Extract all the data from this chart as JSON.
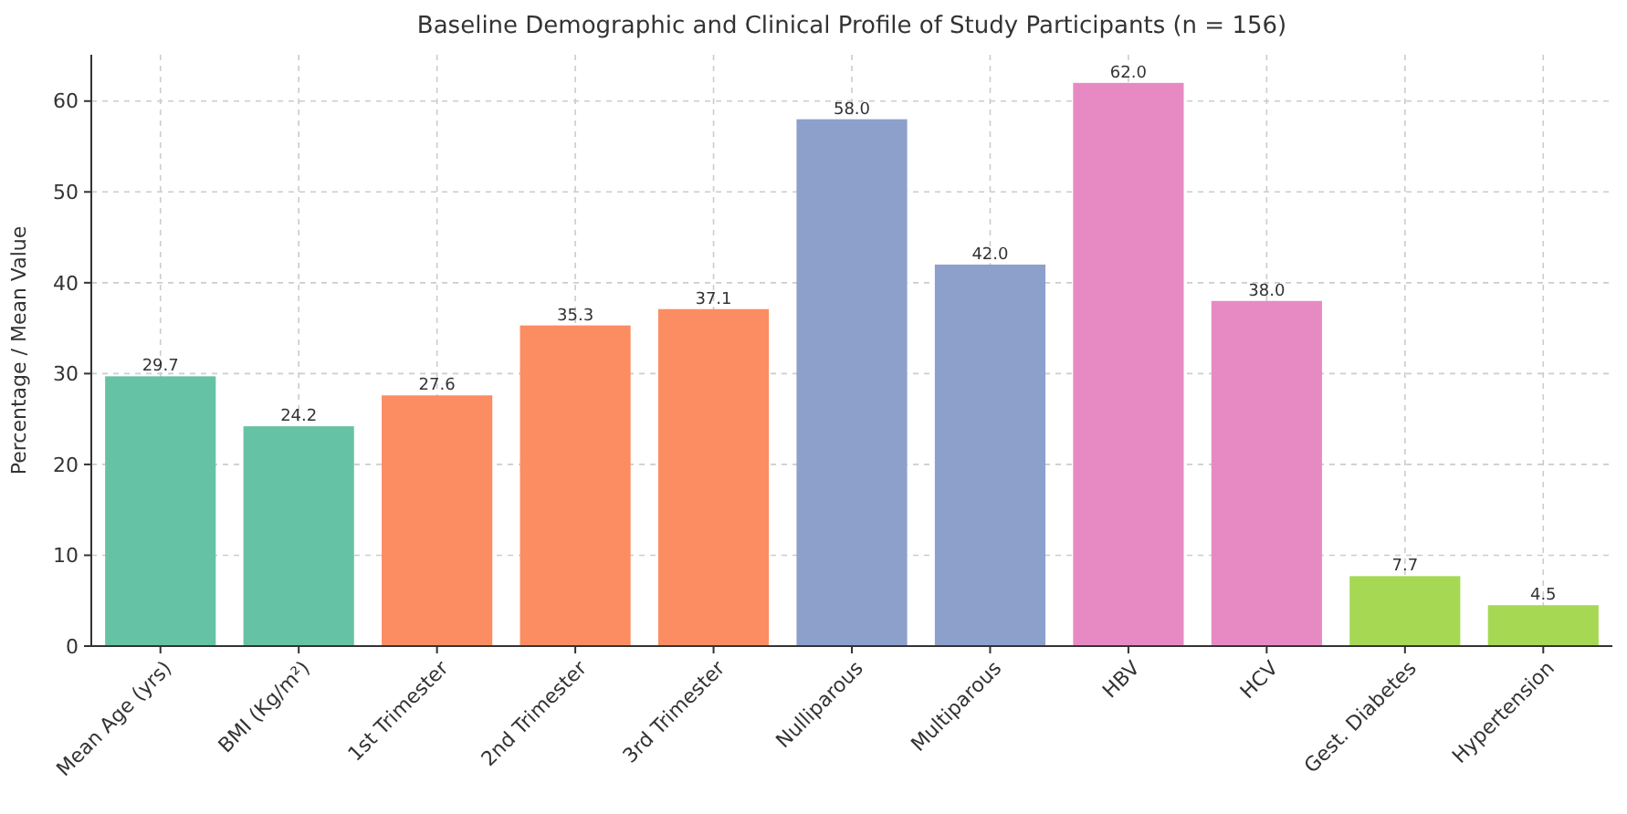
{
  "chart_data": {
    "type": "bar",
    "title": "Baseline Demographic and Clinical Profile of Study Participants (n = 156)",
    "ylabel": "Percentage / Mean Value",
    "categories": [
      "Mean Age (yrs)",
      "BMI (Kg/m²)",
      "1st Trimester",
      "2nd Trimester",
      "3rd Trimester",
      "Nulliparous",
      "Multiparous",
      "HBV",
      "HCV",
      "Gest. Diabetes",
      "Hypertension"
    ],
    "values": [
      29.7,
      24.2,
      27.6,
      35.3,
      37.1,
      58.0,
      42.0,
      62.0,
      38.0,
      7.7,
      4.5
    ],
    "colors": [
      "#66c2a5",
      "#66c2a5",
      "#fc8d62",
      "#fc8d62",
      "#fc8d62",
      "#8da0cb",
      "#8da0cb",
      "#e78ac3",
      "#e78ac3",
      "#a6d854",
      "#a6d854"
    ],
    "value_labels": [
      "29.7",
      "24.2",
      "27.6",
      "35.3",
      "37.1",
      "58.0",
      "42.0",
      "62.0",
      "38.0",
      "7.7",
      "4.5"
    ],
    "ylim": [
      0,
      65.1
    ],
    "yticks": [
      0,
      10,
      20,
      30,
      40,
      50,
      60
    ],
    "grid": true
  }
}
